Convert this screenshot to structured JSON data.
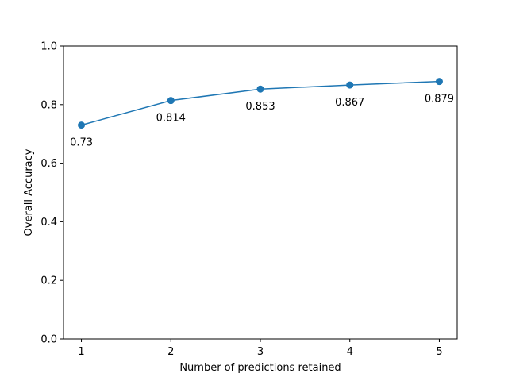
{
  "chart_data": {
    "type": "line",
    "title": "",
    "xlabel": "Number of predictions retained",
    "ylabel": "Overall Accuracy",
    "x": [
      1,
      2,
      3,
      4,
      5
    ],
    "series": [
      {
        "values": [
          0.73,
          0.814,
          0.853,
          0.867,
          0.879
        ],
        "labels": [
          "0.73",
          "0.814",
          "0.853",
          "0.867",
          "0.879"
        ],
        "color": "#1f77b4",
        "marker": "circle"
      }
    ],
    "xlim": [
      0.8,
      5.2
    ],
    "ylim": [
      0.0,
      1.0
    ],
    "xticks": [
      1,
      2,
      3,
      4,
      5
    ],
    "xtick_labels": [
      "1",
      "2",
      "3",
      "4",
      "5"
    ],
    "yticks": [
      0.0,
      0.2,
      0.4,
      0.6,
      0.8,
      1.0
    ],
    "ytick_labels": [
      "0.0",
      "0.2",
      "0.4",
      "0.6",
      "0.8",
      "1.0"
    ],
    "grid": false,
    "legend": "none"
  }
}
